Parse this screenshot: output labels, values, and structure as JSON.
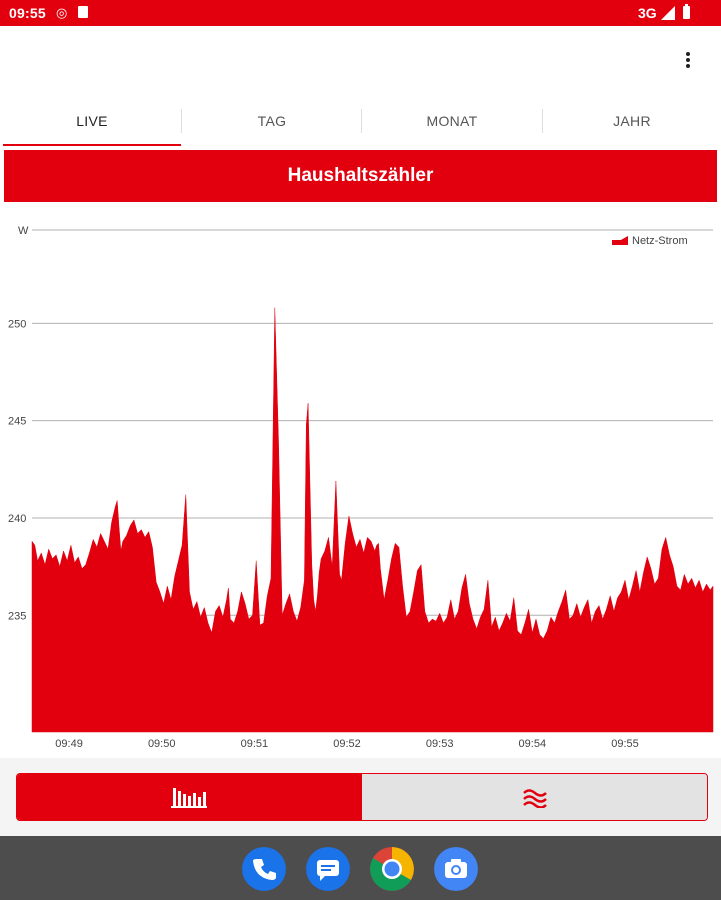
{
  "status_bar": {
    "time": "09:55",
    "network": "3G",
    "icons": [
      "notification-icon",
      "sd-card-icon",
      "signal-icon",
      "battery-icon"
    ]
  },
  "app_bar": {
    "menu_icon": "more-vert-icon"
  },
  "tabs": [
    {
      "label": "LIVE",
      "active": true
    },
    {
      "label": "TAG",
      "active": false
    },
    {
      "label": "MONAT",
      "active": false
    },
    {
      "label": "JAHR",
      "active": false
    }
  ],
  "title": "Haushaltszähler",
  "colors": {
    "accent": "#e2000f",
    "nav_bar": "#4d4d4d",
    "toggle_inactive": "#e3e3e3"
  },
  "chart_data": {
    "type": "area",
    "ylabel": "W",
    "legend": {
      "label": "Netz-Strom",
      "placement": "top-right"
    },
    "yticks": [
      250,
      245,
      240,
      235
    ],
    "ylim": [
      229,
      254.8
    ],
    "xticks": [
      "09:49",
      "09:50",
      "09:51",
      "09:52",
      "09:53",
      "09:54",
      "09:55"
    ],
    "xlim": [
      48.6,
      55.95
    ],
    "grid": "horizontal",
    "series": [
      {
        "name": "Netz-Strom",
        "x": [
          48.6,
          48.63,
          48.66,
          48.7,
          48.74,
          48.78,
          48.82,
          48.86,
          48.9,
          48.94,
          48.98,
          49.02,
          49.06,
          49.1,
          49.14,
          49.18,
          49.22,
          49.26,
          49.3,
          49.34,
          49.38,
          49.42,
          49.46,
          49.5,
          49.52,
          49.54,
          49.56,
          49.58,
          49.62,
          49.66,
          49.7,
          49.74,
          49.78,
          49.82,
          49.86,
          49.9,
          49.94,
          49.98,
          50.02,
          50.06,
          50.1,
          50.14,
          50.18,
          50.22,
          50.26,
          50.3,
          50.34,
          50.38,
          50.42,
          50.46,
          50.5,
          50.54,
          50.58,
          50.62,
          50.66,
          50.7,
          50.72,
          50.74,
          50.78,
          50.82,
          50.86,
          50.9,
          50.94,
          50.98,
          51.02,
          51.06,
          51.1,
          51.14,
          51.18,
          51.22,
          51.26,
          51.3,
          51.34,
          51.38,
          51.42,
          51.46,
          51.5,
          51.54,
          51.56,
          51.58,
          51.62,
          51.64,
          51.66,
          51.68,
          51.7,
          51.72,
          51.76,
          51.8,
          51.84,
          51.88,
          51.9,
          51.92,
          51.94,
          51.98,
          52.02,
          52.06,
          52.1,
          52.14,
          52.18,
          52.22,
          52.26,
          52.3,
          52.32,
          52.34,
          52.36,
          52.4,
          52.44,
          52.48,
          52.52,
          52.56,
          52.6,
          52.64,
          52.68,
          52.72,
          52.76,
          52.8,
          52.84,
          52.88,
          52.92,
          52.96,
          53.0,
          53.04,
          53.08,
          53.12,
          53.16,
          53.2,
          53.24,
          53.28,
          53.32,
          53.36,
          53.4,
          53.44,
          53.48,
          53.52,
          53.56,
          53.6,
          53.64,
          53.68,
          53.72,
          53.76,
          53.8,
          53.84,
          53.88,
          53.92,
          53.96,
          54.0,
          54.04,
          54.08,
          54.12,
          54.16,
          54.2,
          54.24,
          54.28,
          54.32,
          54.36,
          54.4,
          54.44,
          54.48,
          54.52,
          54.56,
          54.6,
          54.64,
          54.68,
          54.72,
          54.76,
          54.8,
          54.84,
          54.88,
          54.92,
          54.96,
          55.0,
          55.04,
          55.08,
          55.12,
          55.16,
          55.2,
          55.24,
          55.28,
          55.32,
          55.36,
          55.4,
          55.44,
          55.48,
          55.52,
          55.56,
          55.6,
          55.64,
          55.68,
          55.72,
          55.76,
          55.8,
          55.84,
          55.88,
          55.92,
          55.95
        ],
        "y": [
          238.8,
          238.6,
          237.8,
          238.2,
          237.6,
          238.4,
          237.9,
          238.1,
          237.5,
          238.3,
          237.8,
          238.6,
          237.7,
          238.0,
          237.4,
          237.6,
          238.2,
          238.9,
          238.5,
          239.2,
          238.8,
          238.4,
          239.8,
          240.6,
          240.9,
          239.5,
          238.3,
          238.8,
          239.1,
          239.6,
          239.9,
          239.2,
          239.4,
          239.0,
          239.3,
          238.5,
          236.7,
          236.2,
          235.6,
          236.5,
          235.8,
          237.0,
          237.8,
          238.6,
          241.2,
          236.2,
          235.3,
          235.7,
          234.9,
          235.4,
          234.6,
          234.1,
          235.2,
          235.5,
          234.9,
          235.8,
          236.4,
          234.8,
          234.6,
          235.2,
          236.2,
          235.6,
          234.8,
          235.0,
          237.8,
          234.5,
          234.6,
          236.0,
          236.9,
          250.8,
          244.0,
          235.0,
          235.6,
          236.1,
          235.2,
          234.7,
          235.4,
          236.8,
          244.8,
          245.9,
          237.6,
          235.8,
          235.2,
          236.0,
          237.2,
          237.9,
          238.3,
          239.0,
          237.5,
          241.9,
          239.4,
          237.1,
          236.8,
          238.7,
          240.1,
          239.2,
          238.5,
          238.9,
          238.2,
          239.0,
          238.8,
          238.3,
          238.6,
          238.7,
          237.4,
          235.8,
          236.8,
          237.9,
          238.7,
          238.5,
          236.5,
          234.9,
          235.2,
          236.2,
          237.3,
          237.6,
          235.2,
          234.6,
          234.8,
          234.7,
          235.1,
          234.6,
          234.9,
          235.8,
          234.8,
          235.2,
          236.4,
          237.1,
          235.6,
          234.8,
          234.3,
          234.9,
          235.3,
          236.8,
          234.4,
          234.9,
          234.2,
          234.6,
          235.1,
          234.7,
          235.9,
          234.2,
          234.0,
          234.6,
          235.3,
          234.1,
          234.8,
          234.0,
          233.8,
          234.2,
          234.9,
          234.6,
          235.2,
          235.7,
          236.3,
          234.8,
          235.0,
          235.6,
          234.9,
          235.4,
          235.8,
          234.6,
          235.2,
          235.5,
          234.8,
          235.3,
          236.0,
          235.2,
          235.9,
          236.2,
          236.8,
          235.8,
          236.5,
          237.3,
          236.2,
          237.2,
          238.0,
          237.4,
          236.6,
          236.9,
          238.4,
          239.0,
          238.1,
          237.5,
          236.5,
          236.3,
          237.1,
          236.6,
          236.9,
          236.4,
          236.8,
          236.2,
          236.6,
          236.3,
          236.5
        ]
      }
    ]
  },
  "view_toggle": {
    "options": [
      {
        "icon": "bar-chart-icon",
        "active": true
      },
      {
        "icon": "wave-icon",
        "active": false
      }
    ]
  },
  "dock": [
    {
      "icon": "phone-icon"
    },
    {
      "icon": "messages-icon"
    },
    {
      "icon": "chrome-icon"
    },
    {
      "icon": "camera-icon"
    }
  ]
}
